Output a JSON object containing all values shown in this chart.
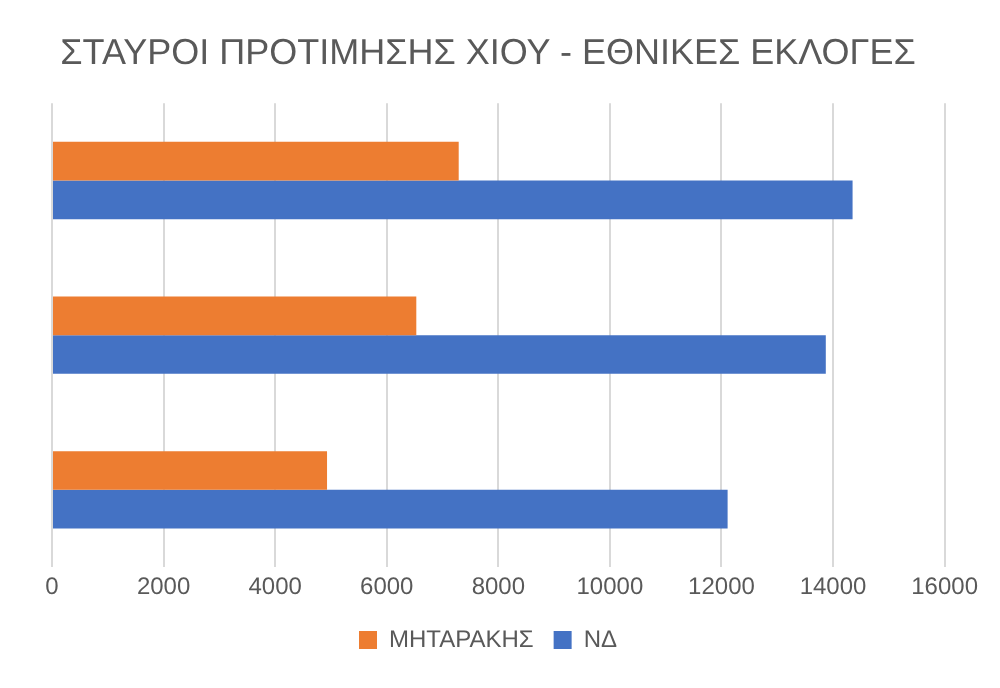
{
  "chart_data": {
    "type": "bar",
    "orientation": "horizontal",
    "title": "ΣΤΑΥΡΟΙ ΠΡΟΤΙΜΗΣΗΣ ΧΙΟΥ - ΕΘΝΙΚΕΣ ΕΚΛΟΓΕΣ",
    "categories": [
      null,
      null,
      null
    ],
    "series": [
      {
        "name": "ΜΗΤΑΡΑΚΗΣ",
        "color": "#ed7d31",
        "values": [
          7290,
          6530,
          4930
        ]
      },
      {
        "name": "ΝΔ",
        "color": "#4472c4",
        "values": [
          14350,
          13870,
          12110
        ]
      }
    ],
    "xlim": [
      0,
      16000
    ],
    "xticks": [
      0,
      2000,
      4000,
      6000,
      8000,
      10000,
      12000,
      14000,
      16000
    ],
    "grid": "x",
    "legend": "bottom"
  }
}
